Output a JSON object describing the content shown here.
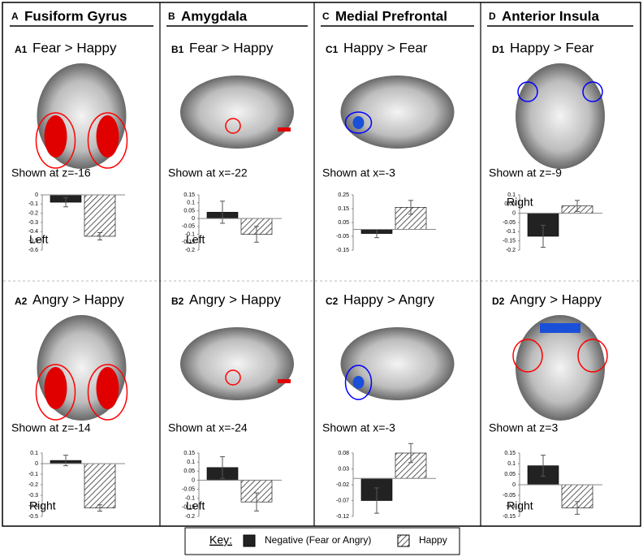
{
  "columns": [
    {
      "letter": "A",
      "title": "Fusiform Gyrus",
      "rows": [
        {
          "id": "A1",
          "contrast": "Fear > Happy",
          "caption": "Shown at z=-16",
          "side": "Left",
          "chart": {
            "type": "bar",
            "values": [
              -0.08,
              -0.45
            ],
            "errors": [
              0.05,
              0.04
            ],
            "ylim": [
              -0.6,
              0
            ],
            "yticks": [
              0,
              -0.1,
              -0.2,
              -0.3,
              -0.4,
              -0.5,
              -0.6
            ]
          }
        },
        {
          "id": "A2",
          "contrast": "Angry > Happy",
          "caption": "Shown at z=-14",
          "side": "Right",
          "chart": {
            "type": "bar",
            "values": [
              0.03,
              -0.42
            ],
            "errors": [
              0.05,
              0.03
            ],
            "ylim": [
              -0.5,
              0.1
            ],
            "yticks": [
              0.1,
              0,
              -0.1,
              -0.2,
              -0.3,
              -0.4,
              -0.5
            ]
          }
        }
      ]
    },
    {
      "letter": "B",
      "title": "Amygdala",
      "rows": [
        {
          "id": "B1",
          "contrast": "Fear > Happy",
          "caption": "Shown at x=-22",
          "side": "Left",
          "chart": {
            "type": "bar",
            "values": [
              0.04,
              -0.1
            ],
            "errors": [
              0.07,
              0.05
            ],
            "ylim": [
              -0.2,
              0.15
            ],
            "yticks": [
              0.15,
              0.1,
              0.05,
              0,
              -0.05,
              -0.1,
              -0.15,
              -0.2
            ]
          }
        },
        {
          "id": "B2",
          "contrast": "Angry > Happy",
          "caption": "Shown at x=-24",
          "side": "Left",
          "chart": {
            "type": "bar",
            "values": [
              0.07,
              -0.12
            ],
            "errors": [
              0.06,
              0.05
            ],
            "ylim": [
              -0.2,
              0.15
            ],
            "yticks": [
              0.15,
              0.1,
              0.05,
              0,
              -0.05,
              -0.1,
              -0.15,
              -0.2
            ]
          }
        }
      ]
    },
    {
      "letter": "C",
      "title": "Medial Prefrontal",
      "rows": [
        {
          "id": "C1",
          "contrast": "Happy > Fear",
          "caption": "Shown at x=-3",
          "chart": {
            "type": "bar",
            "values": [
              -0.03,
              0.16
            ],
            "errors": [
              0.03,
              0.05
            ],
            "ylim": [
              -0.15,
              0.25
            ],
            "yticks": [
              0.25,
              0.15,
              0.05,
              -0.05,
              -0.15
            ]
          }
        },
        {
          "id": "C2",
          "contrast": "Happy > Angry",
          "caption": "Shown at x=-3",
          "chart": {
            "type": "bar",
            "values": [
              -0.07,
              0.08
            ],
            "errors": [
              0.04,
              0.03
            ],
            "ylim": [
              -0.12,
              0.08
            ],
            "yticks": [
              0.08,
              0.03,
              -0.02,
              -0.07,
              -0.12
            ]
          }
        }
      ]
    },
    {
      "letter": "D",
      "title": "Anterior Insula",
      "rows": [
        {
          "id": "D1",
          "contrast": "Happy > Fear",
          "caption": "Shown at z=-9",
          "side": "Right",
          "chart": {
            "type": "bar",
            "values": [
              -0.125,
              0.04
            ],
            "errors": [
              0.06,
              0.03
            ],
            "ylim": [
              -0.2,
              0.1
            ],
            "yticks": [
              0.1,
              0.05,
              0,
              -0.05,
              -0.1,
              -0.15,
              -0.2
            ]
          }
        },
        {
          "id": "D2",
          "contrast": "Angry > Happy",
          "caption": "Shown at z=3",
          "side": "Right",
          "chart": {
            "type": "bar",
            "values": [
              0.09,
              -0.11
            ],
            "errors": [
              0.05,
              0.03
            ],
            "ylim": [
              -0.15,
              0.15
            ],
            "yticks": [
              0.15,
              0.1,
              0.05,
              0,
              -0.05,
              -0.1,
              -0.15
            ]
          }
        }
      ]
    }
  ],
  "key": {
    "label": "Key:",
    "items": [
      {
        "name": "Negative (Fear or Angry)",
        "fill": "#222222"
      },
      {
        "name": "Happy",
        "fill": "hatch"
      }
    ]
  }
}
